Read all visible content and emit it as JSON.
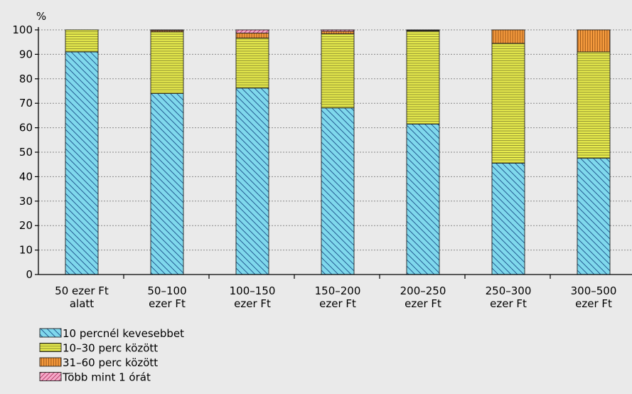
{
  "chart_data": {
    "type": "bar",
    "stacked": true,
    "ylabel": "%",
    "ylim": [
      0,
      100
    ],
    "yticks": [
      0,
      10,
      20,
      30,
      40,
      50,
      60,
      70,
      80,
      90,
      100
    ],
    "grid": "horizontal-dashed",
    "legend_position": "bottom-left",
    "categories": [
      [
        "50 ezer Ft",
        "alatt"
      ],
      [
        "50–100",
        "ezer Ft"
      ],
      [
        "100–150",
        "ezer Ft"
      ],
      [
        "150–200",
        "ezer Ft"
      ],
      [
        "200–250",
        "ezer Ft"
      ],
      [
        "250–300",
        "ezer Ft"
      ],
      [
        "300–500",
        "ezer Ft"
      ]
    ],
    "series": [
      {
        "name": "10 percnél kevesebbet",
        "color": "#7fd8ec",
        "pattern": "diagonal",
        "values": [
          91,
          74,
          76.2,
          68.1,
          61.5,
          45.5,
          47.5
        ]
      },
      {
        "name": "10–30 perc között",
        "color": "#e6ea4d",
        "pattern": "horizontal",
        "values": [
          9,
          25.2,
          20.5,
          30.3,
          38,
          49,
          43.5
        ]
      },
      {
        "name": "31–60 perc között",
        "color": "#f59a3d",
        "pattern": "vertical",
        "values": [
          0,
          0.5,
          2,
          1,
          0.3,
          5.5,
          9
        ]
      },
      {
        "name": "Több mint 1 órát",
        "color": "#f5a9c8",
        "pattern": "crosshatch",
        "values": [
          0,
          0.3,
          1.3,
          0.6,
          0.2,
          0,
          0
        ]
      }
    ]
  }
}
